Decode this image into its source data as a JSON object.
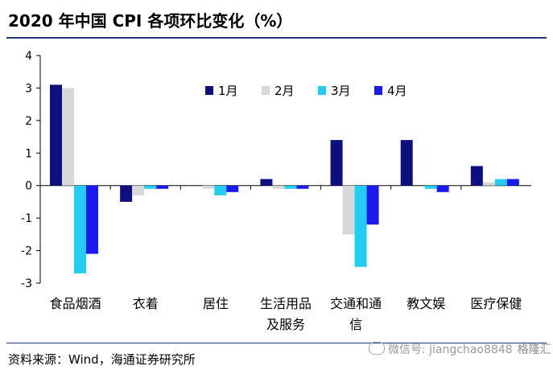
{
  "title": "2020 年中国 CPI 各项环比变化（%）",
  "source": "资料来源：Wind，海通证券研究所",
  "watermark": {
    "text": "微信号: jiangchao8848",
    "badge": "格隆汇"
  },
  "chart_data": {
    "type": "bar",
    "title": "2020 年中国 CPI 各项环比变化（%）",
    "xlabel": "",
    "ylabel": "",
    "ylim": [
      -3,
      4
    ],
    "yticks": [
      "4",
      "3",
      "2",
      "1",
      "0",
      "-1",
      "-2",
      "-3"
    ],
    "ytick_values": [
      4,
      3,
      2,
      1,
      0,
      -1,
      -2,
      -3
    ],
    "categories": [
      [
        "食品烟酒"
      ],
      [
        "衣着"
      ],
      [
        "居住"
      ],
      [
        "生活用品",
        "及服务"
      ],
      [
        "交通和通",
        "信"
      ],
      [
        "教文娱"
      ],
      [
        "医疗保健"
      ]
    ],
    "legend_position": "top-center",
    "series": [
      {
        "name": "1月",
        "color": "#0d0f80",
        "values": [
          3.1,
          -0.5,
          0.0,
          0.2,
          1.4,
          1.4,
          0.6
        ]
      },
      {
        "name": "2月",
        "color": "#d8d8d8",
        "values": [
          3.0,
          -0.3,
          -0.1,
          -0.1,
          -1.5,
          0.0,
          0.1
        ]
      },
      {
        "name": "3月",
        "color": "#22ccf2",
        "values": [
          -2.7,
          -0.1,
          -0.3,
          -0.1,
          -2.5,
          -0.1,
          0.2
        ]
      },
      {
        "name": "4月",
        "color": "#1a1aee",
        "values": [
          -2.1,
          -0.1,
          -0.2,
          -0.1,
          -1.2,
          -0.2,
          0.2
        ]
      }
    ]
  }
}
